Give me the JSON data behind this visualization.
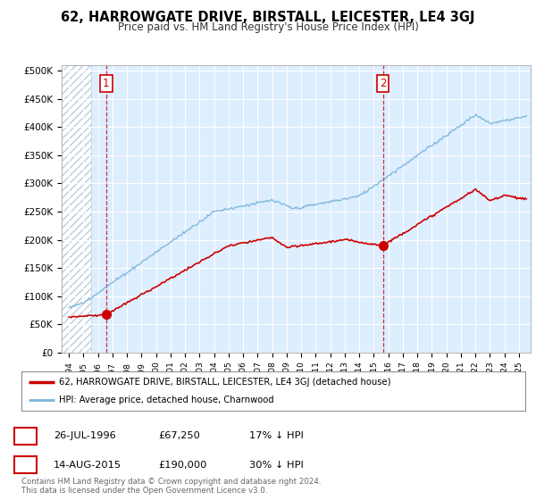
{
  "title": "62, HARROWGATE DRIVE, BIRSTALL, LEICESTER, LE4 3GJ",
  "subtitle": "Price paid vs. HM Land Registry's House Price Index (HPI)",
  "ylabel_ticks": [
    "£0",
    "£50K",
    "£100K",
    "£150K",
    "£200K",
    "£250K",
    "£300K",
    "£350K",
    "£400K",
    "£450K",
    "£500K"
  ],
  "ytick_values": [
    0,
    50000,
    100000,
    150000,
    200000,
    250000,
    300000,
    350000,
    400000,
    450000,
    500000
  ],
  "ylim": [
    0,
    510000
  ],
  "xlim_start": 1993.5,
  "xlim_end": 2025.8,
  "xtick_years": [
    1994,
    1995,
    1996,
    1997,
    1998,
    1999,
    2000,
    2001,
    2002,
    2003,
    2004,
    2005,
    2006,
    2007,
    2008,
    2009,
    2010,
    2011,
    2012,
    2013,
    2014,
    2015,
    2016,
    2017,
    2018,
    2019,
    2020,
    2021,
    2022,
    2023,
    2024,
    2025
  ],
  "sale1_x": 1996.57,
  "sale1_y": 67250,
  "sale1_label": "1",
  "sale1_date": "26-JUL-1996",
  "sale1_price": "£67,250",
  "sale1_hpi": "17% ↓ HPI",
  "sale2_x": 2015.62,
  "sale2_y": 190000,
  "sale2_label": "2",
  "sale2_date": "14-AUG-2015",
  "sale2_price": "£190,000",
  "sale2_hpi": "30% ↓ HPI",
  "red_line_color": "#cc0000",
  "blue_line_color": "#7ab3d9",
  "marker_color": "#cc0000",
  "legend_label_red": "62, HARROWGATE DRIVE, BIRSTALL, LEICESTER, LE4 3GJ (detached house)",
  "legend_label_blue": "HPI: Average price, detached house, Charnwood",
  "footer1": "Contains HM Land Registry data © Crown copyright and database right 2024.",
  "footer2": "This data is licensed under the Open Government Licence v3.0.",
  "bg_color": "#ffffff",
  "plot_bg_color": "#ddeeff",
  "hatch_left_end": 1995.5
}
